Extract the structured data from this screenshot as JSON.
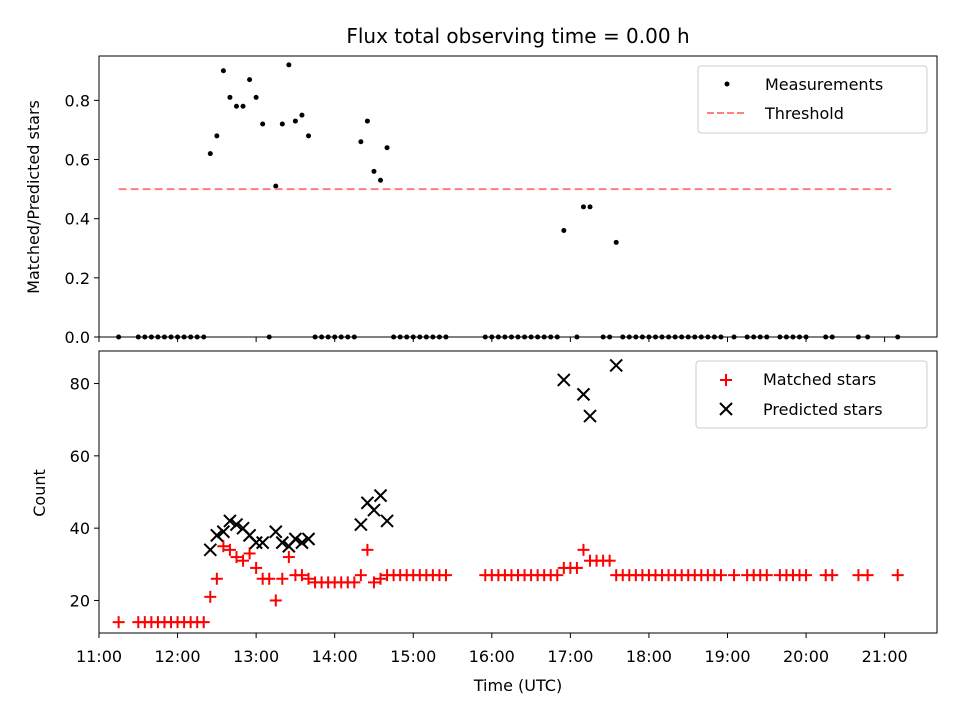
{
  "chart_data": [
    {
      "type": "scatter",
      "title": "Flux total observing time = 0.00 h",
      "xlabel": "",
      "ylabel": "Matched/Predicted stars",
      "xlim": [
        "11:00",
        "21:40"
      ],
      "ylim": [
        0,
        0.95
      ],
      "yticks": [
        0.0,
        0.2,
        0.4,
        0.6,
        0.8
      ],
      "ytick_labels": [
        "0.0",
        "0.2",
        "0.4",
        "0.6",
        "0.8"
      ],
      "legend": {
        "placement": "upper right",
        "entries": [
          "Measurements",
          "Threshold"
        ]
      },
      "series": [
        {
          "name": "Measurements",
          "color": "#000000",
          "marker": "dot",
          "points": [
            [
              "11:15",
              0.0
            ],
            [
              "11:30",
              0.0
            ],
            [
              "11:35",
              0.0
            ],
            [
              "11:40",
              0.0
            ],
            [
              "11:45",
              0.0
            ],
            [
              "11:50",
              0.0
            ],
            [
              "11:55",
              0.0
            ],
            [
              "12:00",
              0.0
            ],
            [
              "12:05",
              0.0
            ],
            [
              "12:10",
              0.0
            ],
            [
              "12:15",
              0.0
            ],
            [
              "12:20",
              0.0
            ],
            [
              "12:25",
              0.62
            ],
            [
              "12:30",
              0.68
            ],
            [
              "12:35",
              0.9
            ],
            [
              "12:40",
              0.81
            ],
            [
              "12:45",
              0.78
            ],
            [
              "12:50",
              0.78
            ],
            [
              "12:55",
              0.87
            ],
            [
              "13:00",
              0.81
            ],
            [
              "13:05",
              0.72
            ],
            [
              "13:10",
              0.0
            ],
            [
              "13:15",
              0.51
            ],
            [
              "13:20",
              0.72
            ],
            [
              "13:25",
              0.92
            ],
            [
              "13:30",
              0.73
            ],
            [
              "13:35",
              0.75
            ],
            [
              "13:40",
              0.68
            ],
            [
              "13:45",
              0.0
            ],
            [
              "13:50",
              0.0
            ],
            [
              "13:55",
              0.0
            ],
            [
              "14:00",
              0.0
            ],
            [
              "14:05",
              0.0
            ],
            [
              "14:10",
              0.0
            ],
            [
              "14:15",
              0.0
            ],
            [
              "14:20",
              0.66
            ],
            [
              "14:25",
              0.73
            ],
            [
              "14:30",
              0.56
            ],
            [
              "14:35",
              0.53
            ],
            [
              "14:40",
              0.64
            ],
            [
              "14:45",
              0.0
            ],
            [
              "14:50",
              0.0
            ],
            [
              "14:55",
              0.0
            ],
            [
              "15:00",
              0.0
            ],
            [
              "15:05",
              0.0
            ],
            [
              "15:10",
              0.0
            ],
            [
              "15:15",
              0.0
            ],
            [
              "15:20",
              0.0
            ],
            [
              "15:25",
              0.0
            ],
            [
              "15:55",
              0.0
            ],
            [
              "16:00",
              0.0
            ],
            [
              "16:05",
              0.0
            ],
            [
              "16:10",
              0.0
            ],
            [
              "16:15",
              0.0
            ],
            [
              "16:20",
              0.0
            ],
            [
              "16:25",
              0.0
            ],
            [
              "16:30",
              0.0
            ],
            [
              "16:35",
              0.0
            ],
            [
              "16:40",
              0.0
            ],
            [
              "16:45",
              0.0
            ],
            [
              "16:50",
              0.0
            ],
            [
              "16:55",
              0.36
            ],
            [
              "17:05",
              0.0
            ],
            [
              "17:10",
              0.44
            ],
            [
              "17:15",
              0.44
            ],
            [
              "17:25",
              0.0
            ],
            [
              "17:30",
              0.0
            ],
            [
              "17:35",
              0.32
            ],
            [
              "17:40",
              0.0
            ],
            [
              "17:45",
              0.0
            ],
            [
              "17:50",
              0.0
            ],
            [
              "17:55",
              0.0
            ],
            [
              "18:00",
              0.0
            ],
            [
              "18:05",
              0.0
            ],
            [
              "18:10",
              0.0
            ],
            [
              "18:15",
              0.0
            ],
            [
              "18:20",
              0.0
            ],
            [
              "18:25",
              0.0
            ],
            [
              "18:30",
              0.0
            ],
            [
              "18:35",
              0.0
            ],
            [
              "18:40",
              0.0
            ],
            [
              "18:45",
              0.0
            ],
            [
              "18:50",
              0.0
            ],
            [
              "18:55",
              0.0
            ],
            [
              "19:05",
              0.0
            ],
            [
              "19:15",
              0.0
            ],
            [
              "19:20",
              0.0
            ],
            [
              "19:25",
              0.0
            ],
            [
              "19:30",
              0.0
            ],
            [
              "19:40",
              0.0
            ],
            [
              "19:45",
              0.0
            ],
            [
              "19:50",
              0.0
            ],
            [
              "19:55",
              0.0
            ],
            [
              "20:00",
              0.0
            ],
            [
              "20:15",
              0.0
            ],
            [
              "20:20",
              0.0
            ],
            [
              "20:40",
              0.0
            ],
            [
              "20:47",
              0.0
            ],
            [
              "21:10",
              0.0
            ]
          ]
        },
        {
          "name": "Threshold",
          "color": "#ff8080",
          "style": "dashed",
          "points": [
            [
              "11:15",
              0.5
            ],
            [
              "21:05",
              0.5
            ]
          ]
        }
      ]
    },
    {
      "type": "scatter",
      "title": "",
      "xlabel": "Time (UTC)",
      "ylabel": "Count",
      "xlim": [
        "11:00",
        "21:40"
      ],
      "ylim": [
        11,
        89
      ],
      "yticks": [
        20,
        40,
        60,
        80
      ],
      "ytick_labels": [
        "20",
        "40",
        "60",
        "80"
      ],
      "xticks": [
        "11:00",
        "12:00",
        "13:00",
        "14:00",
        "15:00",
        "16:00",
        "17:00",
        "18:00",
        "19:00",
        "20:00",
        "21:00"
      ],
      "legend": {
        "placement": "upper right",
        "entries": [
          "Matched stars",
          "Predicted stars"
        ]
      },
      "series": [
        {
          "name": "Matched stars",
          "color": "#ff0000",
          "marker": "plus",
          "points": [
            [
              "11:15",
              14
            ],
            [
              "11:30",
              14
            ],
            [
              "11:35",
              14
            ],
            [
              "11:40",
              14
            ],
            [
              "11:45",
              14
            ],
            [
              "11:50",
              14
            ],
            [
              "11:55",
              14
            ],
            [
              "12:00",
              14
            ],
            [
              "12:05",
              14
            ],
            [
              "12:10",
              14
            ],
            [
              "12:15",
              14
            ],
            [
              "12:20",
              14
            ],
            [
              "12:25",
              21
            ],
            [
              "12:30",
              26
            ],
            [
              "12:35",
              35
            ],
            [
              "12:40",
              34
            ],
            [
              "12:45",
              32
            ],
            [
              "12:50",
              31
            ],
            [
              "12:55",
              33
            ],
            [
              "13:00",
              29
            ],
            [
              "13:05",
              26
            ],
            [
              "13:10",
              26
            ],
            [
              "13:15",
              20
            ],
            [
              "13:20",
              26
            ],
            [
              "13:25",
              32
            ],
            [
              "13:30",
              27
            ],
            [
              "13:35",
              27
            ],
            [
              "13:40",
              26
            ],
            [
              "13:45",
              25
            ],
            [
              "13:50",
              25
            ],
            [
              "13:55",
              25
            ],
            [
              "14:00",
              25
            ],
            [
              "14:05",
              25
            ],
            [
              "14:10",
              25
            ],
            [
              "14:15",
              25
            ],
            [
              "14:20",
              27
            ],
            [
              "14:25",
              34
            ],
            [
              "14:30",
              25
            ],
            [
              "14:35",
              26
            ],
            [
              "14:40",
              27
            ],
            [
              "14:45",
              27
            ],
            [
              "14:50",
              27
            ],
            [
              "14:55",
              27
            ],
            [
              "15:00",
              27
            ],
            [
              "15:05",
              27
            ],
            [
              "15:10",
              27
            ],
            [
              "15:15",
              27
            ],
            [
              "15:20",
              27
            ],
            [
              "15:25",
              27
            ],
            [
              "15:55",
              27
            ],
            [
              "16:00",
              27
            ],
            [
              "16:05",
              27
            ],
            [
              "16:10",
              27
            ],
            [
              "16:15",
              27
            ],
            [
              "16:20",
              27
            ],
            [
              "16:25",
              27
            ],
            [
              "16:30",
              27
            ],
            [
              "16:35",
              27
            ],
            [
              "16:40",
              27
            ],
            [
              "16:45",
              27
            ],
            [
              "16:50",
              27
            ],
            [
              "16:55",
              29
            ],
            [
              "17:00",
              29
            ],
            [
              "17:05",
              29
            ],
            [
              "17:10",
              34
            ],
            [
              "17:15",
              31
            ],
            [
              "17:20",
              31
            ],
            [
              "17:25",
              31
            ],
            [
              "17:30",
              31
            ],
            [
              "17:35",
              27
            ],
            [
              "17:40",
              27
            ],
            [
              "17:45",
              27
            ],
            [
              "17:50",
              27
            ],
            [
              "17:55",
              27
            ],
            [
              "18:00",
              27
            ],
            [
              "18:05",
              27
            ],
            [
              "18:10",
              27
            ],
            [
              "18:15",
              27
            ],
            [
              "18:20",
              27
            ],
            [
              "18:25",
              27
            ],
            [
              "18:30",
              27
            ],
            [
              "18:35",
              27
            ],
            [
              "18:40",
              27
            ],
            [
              "18:45",
              27
            ],
            [
              "18:50",
              27
            ],
            [
              "18:55",
              27
            ],
            [
              "19:05",
              27
            ],
            [
              "19:15",
              27
            ],
            [
              "19:20",
              27
            ],
            [
              "19:25",
              27
            ],
            [
              "19:30",
              27
            ],
            [
              "19:40",
              27
            ],
            [
              "19:45",
              27
            ],
            [
              "19:50",
              27
            ],
            [
              "19:55",
              27
            ],
            [
              "20:00",
              27
            ],
            [
              "20:15",
              27
            ],
            [
              "20:20",
              27
            ],
            [
              "20:40",
              27
            ],
            [
              "20:47",
              27
            ],
            [
              "21:10",
              27
            ]
          ]
        },
        {
          "name": "Predicted stars",
          "color": "#000000",
          "marker": "x",
          "points": [
            [
              "12:25",
              34
            ],
            [
              "12:30",
              38
            ],
            [
              "12:35",
              39
            ],
            [
              "12:40",
              42
            ],
            [
              "12:45",
              41
            ],
            [
              "12:50",
              40
            ],
            [
              "12:55",
              38
            ],
            [
              "13:00",
              36
            ],
            [
              "13:05",
              36
            ],
            [
              "13:15",
              39
            ],
            [
              "13:20",
              36
            ],
            [
              "13:25",
              35
            ],
            [
              "13:30",
              37
            ],
            [
              "13:35",
              36
            ],
            [
              "13:40",
              37
            ],
            [
              "14:20",
              41
            ],
            [
              "14:25",
              47
            ],
            [
              "14:30",
              45
            ],
            [
              "14:35",
              49
            ],
            [
              "14:40",
              42
            ],
            [
              "16:55",
              81
            ],
            [
              "17:10",
              77
            ],
            [
              "17:15",
              71
            ],
            [
              "17:35",
              85
            ]
          ]
        }
      ]
    }
  ]
}
